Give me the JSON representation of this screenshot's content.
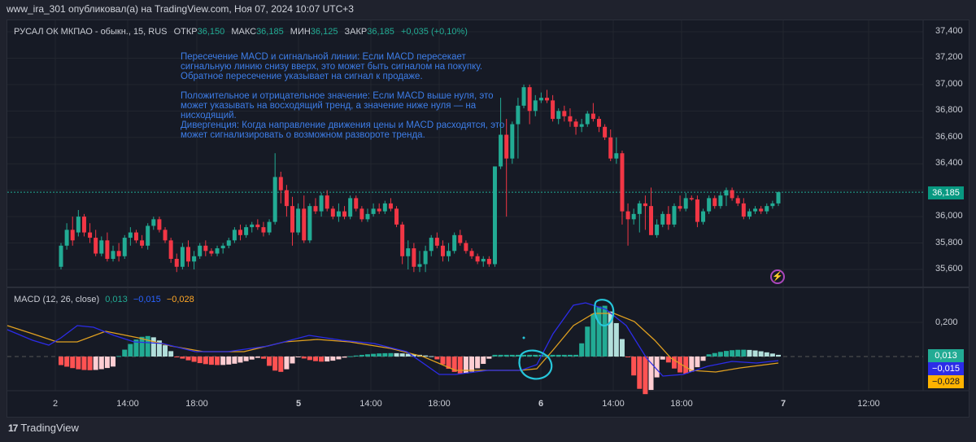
{
  "header": {
    "publisher_line": "www_ira_301 опубликовал(а) на TradingView.com, Ноя 07, 2024 10:07 UTC+3"
  },
  "legend": {
    "symbol": "РУСАЛ ОК МКПАО - обыкн., 15, RUS",
    "open_label": "ОТКР",
    "open": "36,150",
    "high_label": "МАКС",
    "high": "36,185",
    "low_label": "МИН",
    "low": "36,125",
    "close_label": "ЗАКР",
    "close": "36,185",
    "change": "+0,035 (+0,10%)"
  },
  "note": {
    "p1": "Пересечение MACD и сигнальной линии: Если MACD пересекает сигнальную линию снизу вверх, это может быть сигналом на покупку. Обратное пересечение указывает на сигнал к продаже.",
    "p2": "Положительное и отрицательное значение: Если MACD выше нуля, это может указывать на восходящий тренд, а значение ниже нуля — на нисходящий.",
    "p3": "Дивергенция: Когда направление движения цены и MACD расходятся, это может сигнализировать о возможном развороте тренда."
  },
  "macd_legend": {
    "title": "MACD (12, 26, close)",
    "histogram": "0,013",
    "macd": "−0,015",
    "signal": "−0,028"
  },
  "price_axis": {
    "ticks": [
      "37,400",
      "37,200",
      "37,000",
      "36,800",
      "36,600",
      "36,400",
      "36,000",
      "35,800",
      "35,600"
    ],
    "current_price": "36,185"
  },
  "macd_axis": {
    "ticks": [
      "0,200"
    ],
    "badges": [
      {
        "value": "0,013",
        "color": "#22ab94"
      },
      {
        "value": "−0,015",
        "color": "#2c2ce8"
      },
      {
        "value": "−0,028",
        "color": "#ffb300"
      }
    ]
  },
  "time_axis": {
    "labels": [
      {
        "text": "2",
        "x": 68,
        "bold": false
      },
      {
        "text": "14:00",
        "x": 157,
        "bold": false
      },
      {
        "text": "18:00",
        "x": 242,
        "bold": false
      },
      {
        "text": "5",
        "x": 367,
        "bold": true
      },
      {
        "text": "14:00",
        "x": 456,
        "bold": false
      },
      {
        "text": "18:00",
        "x": 540,
        "bold": false
      },
      {
        "text": "6",
        "x": 665,
        "bold": true
      },
      {
        "text": "14:00",
        "x": 754,
        "bold": false
      },
      {
        "text": "18:00",
        "x": 838,
        "bold": false
      },
      {
        "text": "7",
        "x": 963,
        "bold": true
      },
      {
        "text": "12:00",
        "x": 1068,
        "bold": false
      }
    ]
  },
  "colors": {
    "up": "#22ab94",
    "down": "#f23645",
    "macd_line": "#2c2ce8",
    "signal_line": "#e0a020",
    "annotation": "#26c6da",
    "note_text": "#3d7de8"
  },
  "footer": {
    "brand": "TradingView",
    "logo_mark": "17"
  },
  "chart_data": [
    {
      "type": "candlestick",
      "title": "РУСАЛ ОК МКПАО - обыкн., 15, RUS",
      "ylim": [
        35.5,
        37.45
      ],
      "yticks": [
        35.6,
        35.8,
        36.0,
        36.2,
        36.4,
        36.6,
        36.8,
        37.0,
        37.2,
        37.4
      ],
      "last_price": 36.185,
      "x_labels": [
        "2",
        "14:00",
        "18:00",
        "5",
        "14:00",
        "18:00",
        "6",
        "14:00",
        "18:00",
        "7",
        "12:00"
      ],
      "ohlc_approx": [
        [
          35.62,
          35.8,
          35.6,
          35.78
        ],
        [
          35.78,
          35.95,
          35.75,
          35.9
        ],
        [
          35.9,
          36.0,
          35.78,
          35.82
        ],
        [
          35.88,
          36.05,
          35.85,
          36.0
        ],
        [
          36.0,
          36.02,
          35.85,
          35.88
        ],
        [
          35.88,
          35.95,
          35.8,
          35.84
        ],
        [
          35.84,
          35.9,
          35.7,
          35.72
        ],
        [
          35.72,
          35.85,
          35.7,
          35.82
        ],
        [
          35.82,
          35.88,
          35.66,
          35.68
        ],
        [
          35.68,
          35.78,
          35.66,
          35.74
        ],
        [
          35.74,
          35.8,
          35.66,
          35.7
        ],
        [
          35.7,
          35.86,
          35.68,
          35.84
        ],
        [
          35.84,
          35.92,
          35.78,
          35.88
        ],
        [
          35.88,
          35.9,
          35.8,
          35.82
        ],
        [
          35.82,
          35.86,
          35.76,
          35.78
        ],
        [
          35.78,
          35.95,
          35.75,
          35.93
        ],
        [
          35.93,
          36.0,
          35.9,
          35.98
        ],
        [
          35.98,
          36.0,
          35.88,
          35.9
        ],
        [
          35.9,
          35.92,
          35.8,
          35.82
        ],
        [
          35.82,
          35.84,
          35.65,
          35.68
        ],
        [
          35.68,
          35.72,
          35.58,
          35.62
        ],
        [
          35.62,
          35.8,
          35.6,
          35.77
        ],
        [
          35.77,
          35.82,
          35.62,
          35.66
        ],
        [
          35.66,
          35.74,
          35.6,
          35.7
        ],
        [
          35.7,
          35.8,
          35.68,
          35.78
        ],
        [
          35.78,
          35.82,
          35.7,
          35.74
        ],
        [
          35.74,
          35.76,
          35.7,
          35.72
        ],
        [
          35.72,
          35.78,
          35.7,
          35.76
        ],
        [
          35.76,
          35.8,
          35.72,
          35.78
        ],
        [
          35.78,
          35.84,
          35.76,
          35.82
        ],
        [
          35.82,
          35.92,
          35.8,
          35.9
        ],
        [
          35.9,
          35.94,
          35.82,
          35.86
        ],
        [
          35.86,
          35.94,
          35.84,
          35.92
        ],
        [
          35.92,
          35.96,
          35.88,
          35.94
        ],
        [
          35.94,
          35.98,
          35.9,
          35.92
        ],
        [
          35.92,
          35.96,
          35.85,
          35.88
        ],
        [
          35.88,
          35.98,
          35.86,
          35.96
        ],
        [
          35.96,
          36.48,
          35.94,
          36.3
        ],
        [
          36.3,
          36.34,
          36.1,
          36.2
        ],
        [
          36.2,
          36.24,
          36.0,
          36.08
        ],
        [
          36.08,
          36.15,
          35.78,
          35.88
        ],
        [
          35.88,
          36.1,
          35.86,
          36.06
        ],
        [
          36.06,
          36.16,
          35.8,
          35.82
        ],
        [
          35.82,
          36.1,
          35.8,
          36.08
        ],
        [
          36.08,
          36.14,
          36.02,
          36.04
        ],
        [
          36.04,
          36.18,
          36.0,
          36.16
        ],
        [
          36.16,
          36.2,
          36.04,
          36.06
        ],
        [
          36.06,
          36.08,
          35.98,
          36.0
        ],
        [
          36.0,
          36.1,
          35.96,
          36.04
        ],
        [
          36.04,
          36.08,
          35.98,
          36.0
        ],
        [
          36.0,
          36.16,
          35.98,
          36.14
        ],
        [
          36.14,
          36.16,
          36.04,
          36.06
        ],
        [
          36.06,
          36.08,
          35.96,
          35.98
        ],
        [
          35.98,
          36.06,
          35.96,
          36.02
        ],
        [
          36.02,
          36.1,
          36.0,
          36.06
        ],
        [
          36.06,
          36.1,
          36.02,
          36.04
        ],
        [
          36.04,
          36.12,
          36.02,
          36.1
        ],
        [
          36.1,
          36.14,
          36.04,
          36.06
        ],
        [
          36.06,
          36.08,
          35.92,
          35.94
        ],
        [
          35.94,
          35.96,
          35.64,
          35.7
        ],
        [
          35.7,
          35.82,
          35.6,
          35.76
        ],
        [
          35.76,
          35.8,
          35.58,
          35.62
        ],
        [
          35.62,
          35.74,
          35.58,
          35.64
        ],
        [
          35.64,
          35.78,
          35.58,
          35.74
        ],
        [
          35.74,
          35.86,
          35.7,
          35.84
        ],
        [
          35.84,
          35.88,
          35.76,
          35.78
        ],
        [
          35.78,
          35.82,
          35.66,
          35.7
        ],
        [
          35.7,
          35.8,
          35.66,
          35.74
        ],
        [
          35.74,
          35.88,
          35.72,
          35.86
        ],
        [
          35.86,
          35.9,
          35.78,
          35.8
        ],
        [
          35.8,
          35.82,
          35.72,
          35.74
        ],
        [
          35.74,
          35.76,
          35.68,
          35.7
        ],
        [
          35.7,
          35.72,
          35.64,
          35.66
        ],
        [
          35.66,
          35.7,
          35.62,
          35.68
        ],
        [
          35.68,
          35.7,
          35.62,
          35.64
        ],
        [
          35.64,
          36.38,
          35.62,
          36.38
        ],
        [
          36.38,
          36.9,
          36.36,
          36.62
        ],
        [
          36.62,
          36.74,
          36.0,
          36.44
        ],
        [
          36.44,
          36.72,
          36.4,
          36.7
        ],
        [
          36.7,
          36.9,
          36.44,
          36.84
        ],
        [
          36.84,
          37.0,
          36.82,
          36.98
        ],
        [
          36.98,
          37.0,
          36.7,
          36.8
        ],
        [
          36.8,
          36.92,
          36.76,
          36.88
        ],
        [
          36.88,
          36.94,
          36.86,
          36.9
        ],
        [
          36.9,
          36.96,
          36.86,
          36.88
        ],
        [
          36.88,
          36.92,
          36.72,
          36.74
        ],
        [
          36.74,
          36.82,
          36.7,
          36.8
        ],
        [
          36.8,
          36.84,
          36.72,
          36.76
        ],
        [
          36.76,
          36.82,
          36.68,
          36.72
        ],
        [
          36.72,
          36.74,
          36.62,
          36.68
        ],
        [
          36.68,
          36.74,
          36.64,
          36.7
        ],
        [
          36.7,
          36.8,
          36.68,
          36.78
        ],
        [
          36.78,
          36.86,
          36.72,
          36.74
        ],
        [
          36.74,
          36.76,
          36.64,
          36.68
        ],
        [
          36.68,
          36.7,
          36.58,
          36.6
        ],
        [
          36.6,
          36.66,
          36.42,
          36.44
        ],
        [
          36.44,
          36.6,
          36.4,
          36.48
        ],
        [
          36.48,
          36.5,
          35.94,
          36.04
        ],
        [
          36.04,
          36.1,
          35.78,
          35.98
        ],
        [
          35.98,
          36.06,
          35.94,
          36.02
        ],
        [
          36.02,
          36.12,
          35.88,
          36.1
        ],
        [
          36.1,
          36.16,
          35.9,
          36.08
        ],
        [
          36.08,
          36.22,
          35.86,
          35.86
        ],
        [
          35.86,
          35.98,
          35.84,
          35.94
        ],
        [
          35.94,
          36.04,
          35.92,
          36.02
        ],
        [
          36.02,
          36.08,
          35.9,
          35.94
        ],
        [
          35.94,
          36.1,
          35.92,
          36.08
        ],
        [
          36.08,
          36.16,
          36.04,
          36.06
        ],
        [
          36.06,
          36.18,
          36.04,
          36.14
        ],
        [
          36.14,
          36.16,
          36.12,
          36.13
        ],
        [
          36.13,
          36.16,
          35.92,
          35.96
        ],
        [
          35.96,
          36.06,
          35.94,
          36.04
        ],
        [
          36.04,
          36.16,
          36.02,
          36.14
        ],
        [
          36.14,
          36.16,
          36.06,
          36.08
        ],
        [
          36.08,
          36.18,
          36.06,
          36.16
        ],
        [
          36.16,
          36.22,
          36.08,
          36.2
        ],
        [
          36.2,
          36.22,
          36.12,
          36.14
        ],
        [
          36.14,
          36.16,
          36.08,
          36.1
        ],
        [
          36.1,
          36.14,
          35.98,
          36.0
        ],
        [
          36.0,
          36.06,
          35.98,
          36.04
        ],
        [
          36.04,
          36.08,
          36.02,
          36.06
        ],
        [
          36.06,
          36.08,
          36.02,
          36.04
        ],
        [
          36.04,
          36.1,
          36.02,
          36.08
        ],
        [
          36.08,
          36.12,
          36.06,
          36.1
        ],
        [
          36.1,
          36.19,
          36.08,
          36.185
        ]
      ]
    },
    {
      "type": "line+histogram",
      "title": "MACD (12, 26, close)",
      "yticks": [
        0.2
      ],
      "last_values": {
        "histogram": 0.013,
        "macd": -0.015,
        "signal": -0.028
      },
      "series": [
        {
          "name": "MACD",
          "color": "#2c2ce8"
        },
        {
          "name": "Signal",
          "color": "#e0a020"
        },
        {
          "name": "Histogram",
          "color": "#22ab94 / #f23645"
        }
      ],
      "annotations": [
        "circle at bullish crossover near 6th 10:00",
        "circle at MACD/signal peak near 6th 13:00"
      ]
    }
  ]
}
